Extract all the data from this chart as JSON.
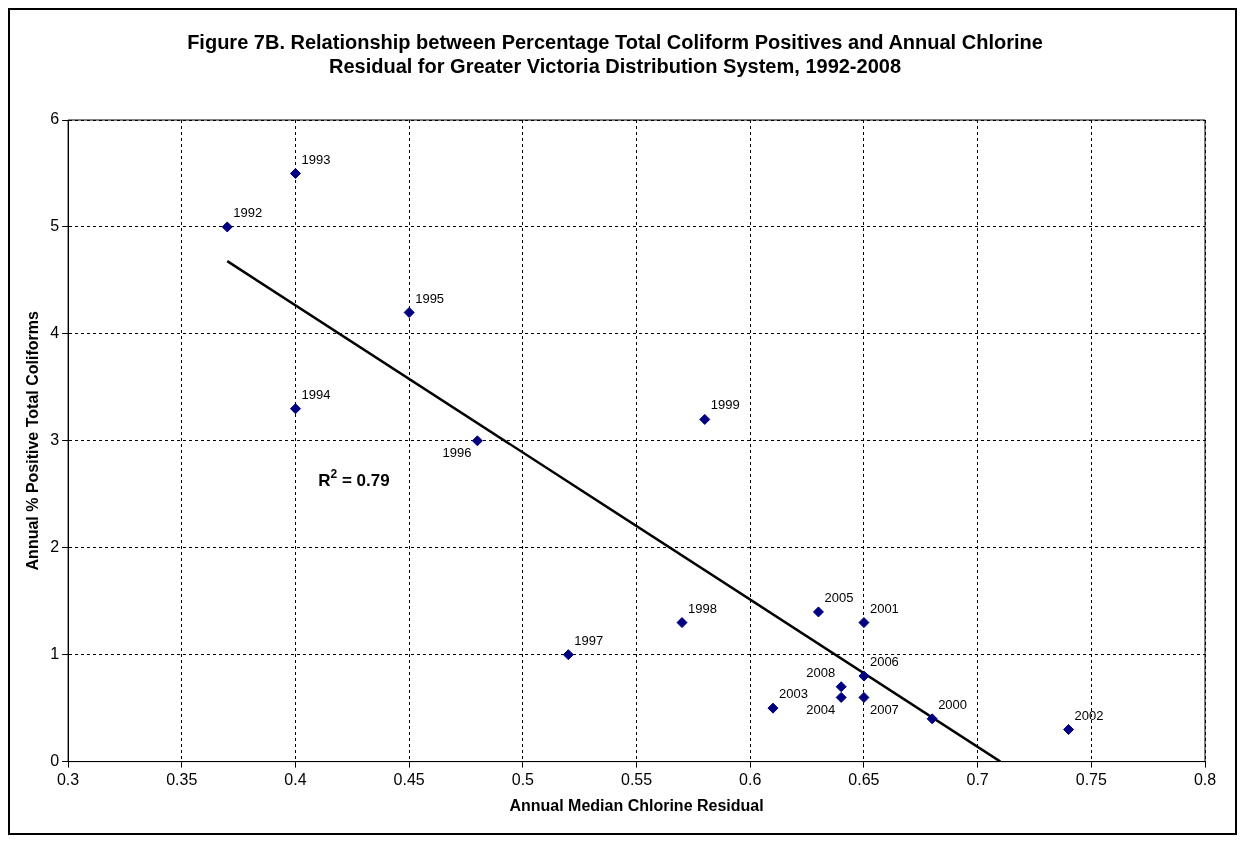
{
  "chart_data": {
    "type": "scatter",
    "title": "Figure 7B. Relationship between Percentage Total Coliform Positives and Annual Chlorine Residual for Greater Victoria Distribution System, 1992-2008",
    "xlabel": "Annual Median Chlorine Residual",
    "ylabel": "Annual % Positive Total Coliforms",
    "xlim": [
      0.3,
      0.8
    ],
    "xticks": [
      0.3,
      0.35,
      0.4,
      0.45,
      0.5,
      0.55,
      0.6,
      0.65,
      0.7,
      0.75,
      0.8
    ],
    "ylim": [
      0,
      6
    ],
    "yticks": [
      0,
      1,
      2,
      3,
      4,
      5,
      6
    ],
    "grid": true,
    "legend": false,
    "marker": "diamond",
    "series": [
      {
        "color": "#000080",
        "x": [
          0.37,
          0.4,
          0.4,
          0.45,
          0.48,
          0.52,
          0.57,
          0.58,
          0.68,
          0.65,
          0.74,
          0.61,
          0.64,
          0.63,
          0.65,
          0.65,
          0.64
        ],
        "values": [
          5.0,
          5.5,
          3.3,
          4.2,
          3.0,
          1.0,
          1.3,
          3.2,
          0.4,
          1.3,
          0.3,
          0.5,
          0.6,
          1.4,
          0.8,
          0.6,
          0.7
        ]
      },
      {
        "type": "line",
        "color": "#000000",
        "marker": "none",
        "x": [
          0.37,
          0.71
        ],
        "values": [
          4.68,
          0
        ]
      }
    ],
    "annotations": [
      "R$^{2}$ = 0.79",
      {
        "text": "1992",
        "x": 0.37,
        "y": 5.0
      },
      {
        "text": "1993",
        "x": 0.4,
        "y": 5.5
      },
      {
        "text": "1994",
        "x": 0.4,
        "y": 3.3
      },
      {
        "text": "1995",
        "x": 0.45,
        "y": 4.2
      },
      {
        "text": "1996",
        "x": 0.48,
        "y": 3.0
      },
      {
        "text": "1997",
        "x": 0.52,
        "y": 1.0
      },
      {
        "text": "1998",
        "x": 0.57,
        "y": 1.3
      },
      {
        "text": "1999",
        "x": 0.58,
        "y": 3.2
      },
      {
        "text": "2000",
        "x": 0.68,
        "y": 0.4
      },
      {
        "text": "2001",
        "x": 0.65,
        "y": 1.3
      },
      {
        "text": "2002",
        "x": 0.74,
        "y": 0.3
      },
      {
        "text": "2003",
        "x": 0.61,
        "y": 0.5
      },
      {
        "text": "2004",
        "x": 0.64,
        "y": 0.6
      },
      {
        "text": "2005",
        "x": 0.63,
        "y": 1.4
      },
      {
        "text": "2006",
        "x": 0.65,
        "y": 0.8
      },
      {
        "text": "2007",
        "x": 0.65,
        "y": 0.6
      },
      {
        "text": "2008",
        "x": 0.64,
        "y": 0.7
      }
    ]
  }
}
